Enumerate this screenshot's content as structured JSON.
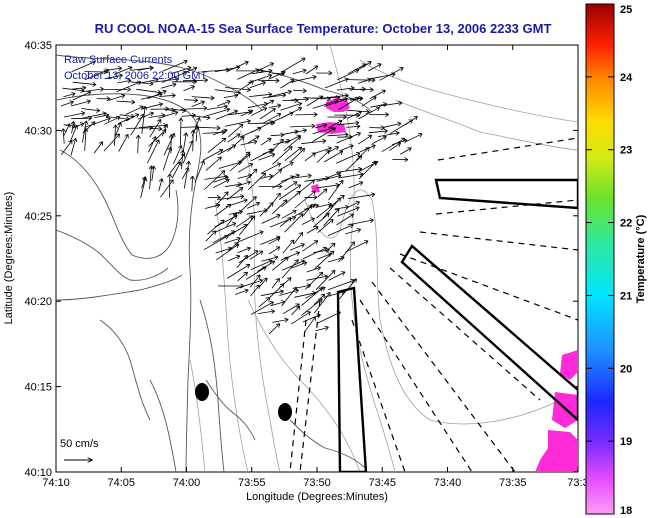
{
  "title": "RU COOL  NOAA-15  Sea Surface Temperature:  October 13, 2006 2233 GMT",
  "legend": {
    "line1": "Raw Surface Currents",
    "line2": "October 13, 2006 22:00 GMT"
  },
  "axes": {
    "xlabel": "Longitude (Degrees:Minutes)",
    "ylabel": "Latitude (Degrees:Minutes)",
    "xticks": [
      "74:10",
      "74:05",
      "74:00",
      "73:55",
      "73:50",
      "73:45",
      "73:40",
      "73:35",
      "73:3"
    ],
    "yticks": [
      "40:10",
      "40:15",
      "40:20",
      "40:25",
      "40:30",
      "40:35"
    ]
  },
  "colorbar": {
    "label": "Temperature (°C)",
    "ticks": [
      "18",
      "19",
      "20",
      "21",
      "22",
      "23",
      "24",
      "25"
    ],
    "min": 18,
    "max": 25
  },
  "scale": {
    "label": "50 cm/s"
  },
  "colors": {
    "title": "#1a1aa8",
    "sst_patch": "#ff2bd9",
    "land_contour": "#606060",
    "bathymetry": "#9a9a9a",
    "vectors": "#000000"
  },
  "chart_data": {
    "type": "map",
    "xlim": [
      "74:10",
      "73:30"
    ],
    "ylim": [
      "40:10",
      "40:35"
    ],
    "colorbar_range": [
      18,
      25
    ]
  }
}
